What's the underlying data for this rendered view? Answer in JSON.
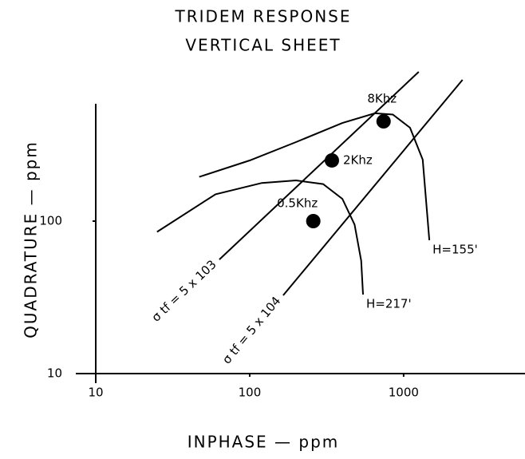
{
  "chart_data": {
    "type": "line",
    "title": "TRIDEM RESPONSE",
    "subtitle": "VERTICAL SHEET",
    "xlabel": "INPHASE — ppm",
    "ylabel": "QUADRATURE — ppm",
    "log_x": true,
    "log_y": true,
    "xlim": [
      10,
      6000
    ],
    "ylim": [
      10,
      1000
    ],
    "xticks": [
      10,
      100,
      1000
    ],
    "yticks": [
      10,
      100
    ],
    "color": "#000000",
    "series": [
      {
        "name": "H=217'",
        "kind": "curve",
        "x": [
          25,
          60,
          120,
          200,
          300,
          400,
          480,
          530,
          545
        ],
        "y": [
          85,
          150,
          178,
          185,
          175,
          140,
          95,
          55,
          33
        ]
      },
      {
        "name": "H=155'",
        "kind": "curve",
        "x": [
          47,
          100,
          200,
          400,
          650,
          850,
          1100,
          1330,
          1470
        ],
        "y": [
          195,
          250,
          330,
          440,
          510,
          500,
          410,
          253,
          75
        ]
      },
      {
        "name": "σ tf = 5 x 103",
        "kind": "guide",
        "x": [
          63.5,
          1254
        ],
        "y": [
          56,
          953
        ]
      },
      {
        "name": "σ tf = 5 x 104",
        "kind": "guide",
        "x": [
          165,
          2415
        ],
        "y": [
          32.6,
          845
        ]
      }
    ],
    "points": {
      "x": [
        259,
        342,
        741
      ],
      "y": [
        100,
        250,
        451
      ],
      "labels": [
        "0.5Khz",
        "2Khz",
        "8Khz"
      ]
    }
  }
}
